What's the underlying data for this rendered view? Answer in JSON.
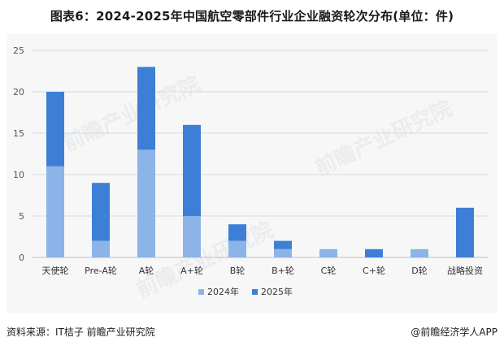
{
  "title": "图表6：2024-2025年中国航空零部件行业企业融资轮次分布(单位：件)",
  "footer": {
    "source": "资料来源：IT桔子 前瞻产业研究院",
    "brand": "@前瞻经济学人APP"
  },
  "watermark": "前瞻产业研究院",
  "colors": {
    "series_2024": "#8db4e8",
    "series_2025": "#3d7fd6",
    "grid": "#d9d9d9"
  },
  "chart_data": {
    "type": "bar",
    "stacked": true,
    "title": "图表6：2024-2025年中国航空零部件行业企业融资轮次分布(单位：件)",
    "categories": [
      "天使轮",
      "Pre-A轮",
      "A轮",
      "A+轮",
      "B轮",
      "B+轮",
      "C轮",
      "C+轮",
      "D轮",
      "战略投资"
    ],
    "series": [
      {
        "name": "2024年",
        "values": [
          11,
          2,
          13,
          5,
          2,
          1,
          1,
          0,
          1,
          0
        ]
      },
      {
        "name": "2025年",
        "values": [
          9,
          7,
          10,
          11,
          2,
          1,
          0,
          1,
          0,
          6
        ]
      }
    ],
    "ylim": [
      0,
      25
    ],
    "yticks": [
      0,
      5,
      10,
      15,
      20,
      25
    ],
    "grid": true,
    "legend": "bottom"
  }
}
